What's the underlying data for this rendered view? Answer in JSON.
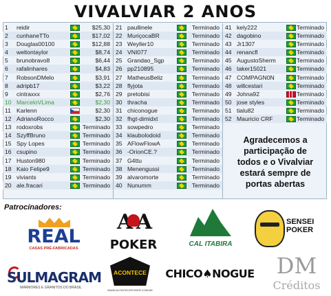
{
  "title": "VIVALVIAR 2 ANOS",
  "col1": [
    {
      "n": "1",
      "name": "reidir",
      "flag": "br",
      "val": "$25,30"
    },
    {
      "n": "2",
      "name": "cunhaneTTo",
      "flag": "br",
      "val": "$17,02"
    },
    {
      "n": "3",
      "name": "Douglas00100",
      "flag": "br",
      "val": "$12,88"
    },
    {
      "n": "4",
      "name": "weltontaylor",
      "flag": "br",
      "val": "$8,74"
    },
    {
      "n": "5",
      "name": "brunobravo8",
      "flag": "br",
      "val": "$6,44"
    },
    {
      "n": "6",
      "name": "rafalinhares",
      "flag": "br",
      "val": "$4,83"
    },
    {
      "n": "7",
      "name": "RobsonDMelo",
      "flag": "br",
      "val": "$3,91"
    },
    {
      "n": "8",
      "name": "adripb17",
      "flag": "br",
      "val": "$3,22"
    },
    {
      "n": "9",
      "name": "cintraxxx",
      "flag": "br",
      "val": "$2,76"
    },
    {
      "n": "10",
      "name": "MarceloVLima",
      "flag": "br",
      "val": "$2,30",
      "highlight": true
    },
    {
      "n": "11",
      "name": "Karlenn",
      "flag": "cz",
      "val": "$2,30"
    },
    {
      "n": "12",
      "name": "AdrianoRocco",
      "flag": "br",
      "val": "$2,30"
    },
    {
      "n": "13",
      "name": "rodoxrobs",
      "flag": "br",
      "val": "Terminado"
    },
    {
      "n": "14",
      "name": "SzyffBruno",
      "flag": "br",
      "val": "Terminado"
    },
    {
      "n": "15",
      "name": "Spy Lopes",
      "flag": "br",
      "val": "Terminado"
    },
    {
      "n": "16",
      "name": "csupino",
      "flag": "br",
      "val": "Terminado"
    },
    {
      "n": "17",
      "name": "Huston980",
      "flag": "br",
      "val": "Terminado"
    },
    {
      "n": "18",
      "name": "Kaio Felipe9",
      "flag": "br",
      "val": "Terminado"
    },
    {
      "n": "19",
      "name": "viviants",
      "flag": "br",
      "val": "Terminado"
    },
    {
      "n": "20",
      "name": "ale.fracari",
      "flag": "br",
      "val": "Terminado"
    }
  ],
  "col2": [
    {
      "n": "21",
      "name": "paullinele",
      "flag": "br",
      "val": "Terminado"
    },
    {
      "n": "22",
      "name": "MuriçocaBR",
      "flag": "br",
      "val": "Terminado"
    },
    {
      "n": "23",
      "name": "Weyller10",
      "flag": "br",
      "val": "Terminado"
    },
    {
      "n": "24",
      "name": "VNI077",
      "flag": "br",
      "val": "Terminado"
    },
    {
      "n": "25",
      "name": "Grandao_Sgp",
      "flag": "br",
      "val": "Terminado"
    },
    {
      "n": "26",
      "name": "pp210895",
      "flag": "br",
      "val": "Terminado"
    },
    {
      "n": "27",
      "name": "MatheusBeliz",
      "flag": "br",
      "val": "Terminado"
    },
    {
      "n": "28",
      "name": "flyjota",
      "flag": "br",
      "val": "Terminado"
    },
    {
      "n": "29",
      "name": "pretobisi",
      "flag": "br",
      "val": "Terminado"
    },
    {
      "n": "30",
      "name": "thracha",
      "flag": "br",
      "val": "Terminado"
    },
    {
      "n": "31",
      "name": "chiconogue",
      "flag": "br",
      "val": "Terminado"
    },
    {
      "n": "32",
      "name": "fhgt-dimidxt",
      "flag": "br",
      "val": "Terminado"
    },
    {
      "n": "33",
      "name": "sowpedro",
      "flag": "br",
      "val": "Terminado"
    },
    {
      "n": "34",
      "name": "klaubolodoid",
      "flag": "br",
      "val": "Terminado"
    },
    {
      "n": "35",
      "name": "AFlowFlowA",
      "flag": "br",
      "val": "Terminado"
    },
    {
      "n": "36",
      "name": "-OrionCE.?",
      "flag": "br",
      "val": "Terminado"
    },
    {
      "n": "37",
      "name": "G4ttu",
      "flag": "br",
      "val": "Terminado"
    },
    {
      "n": "38",
      "name": "Menengussi",
      "flag": "br",
      "val": "Terminado"
    },
    {
      "n": "39",
      "name": "alvaromorte",
      "flag": "br",
      "val": "Terminado"
    },
    {
      "n": "40",
      "name": "Nunumm",
      "flag": "br",
      "val": "Terminado"
    }
  ],
  "col3": [
    {
      "n": "41",
      "name": "kely222",
      "flag": "br",
      "val": "Terminado"
    },
    {
      "n": "42",
      "name": "dagobino",
      "flag": "br",
      "val": "Terminado"
    },
    {
      "n": "43",
      "name": "Jr1307",
      "flag": "br",
      "val": "Terminado"
    },
    {
      "n": "44",
      "name": "renancfl",
      "flag": "br",
      "val": "Terminado"
    },
    {
      "n": "45",
      "name": "AugustoSherm",
      "flag": "br",
      "val": "Terminado"
    },
    {
      "n": "46",
      "name": "taker15021",
      "flag": "br",
      "val": "Terminado"
    },
    {
      "n": "47",
      "name": "COMPAGN0N",
      "flag": "br",
      "val": "Terminado"
    },
    {
      "n": "48",
      "name": "willcestari",
      "flag": "br",
      "val": "Terminado"
    },
    {
      "n": "49",
      "name": "Johna92",
      "flag": "no",
      "val": "Terminado"
    },
    {
      "n": "50",
      "name": "jose styles",
      "flag": "br",
      "val": "Terminado"
    },
    {
      "n": "51",
      "name": "tialu82",
      "flag": "br",
      "val": "Terminado"
    },
    {
      "n": "52",
      "name": "Mauricio CRF",
      "flag": "br",
      "val": "Terminado"
    }
  ],
  "thanks": [
    "Agradecemos a",
    "participação de",
    "todos e o Vivalviar",
    "estará sempre de",
    "portas abertas"
  ],
  "sponsors": {
    "label": "Patrocinadores:",
    "real": {
      "word": "REAL",
      "sub": "CASAS PRÉ-FABRICADAS"
    },
    "aaa": {
      "top": "A A",
      "poker": "POKER"
    },
    "cal": "CAL ITABIRA",
    "sensei": {
      "l1": "SENSEI",
      "l2": "POKER"
    },
    "sulmagram": {
      "word": "SULMAGRAM",
      "sub": "MÁRMORES E GRANITOS DO BRASIL"
    },
    "acontece": {
      "word": "ACONTECE",
      "url": "WWW.ACONTECEPOKER.COM.BR"
    },
    "chico": "CHICO♠NOGUE",
    "dm": {
      "dm": "DM",
      "cred": "Créditos"
    }
  }
}
